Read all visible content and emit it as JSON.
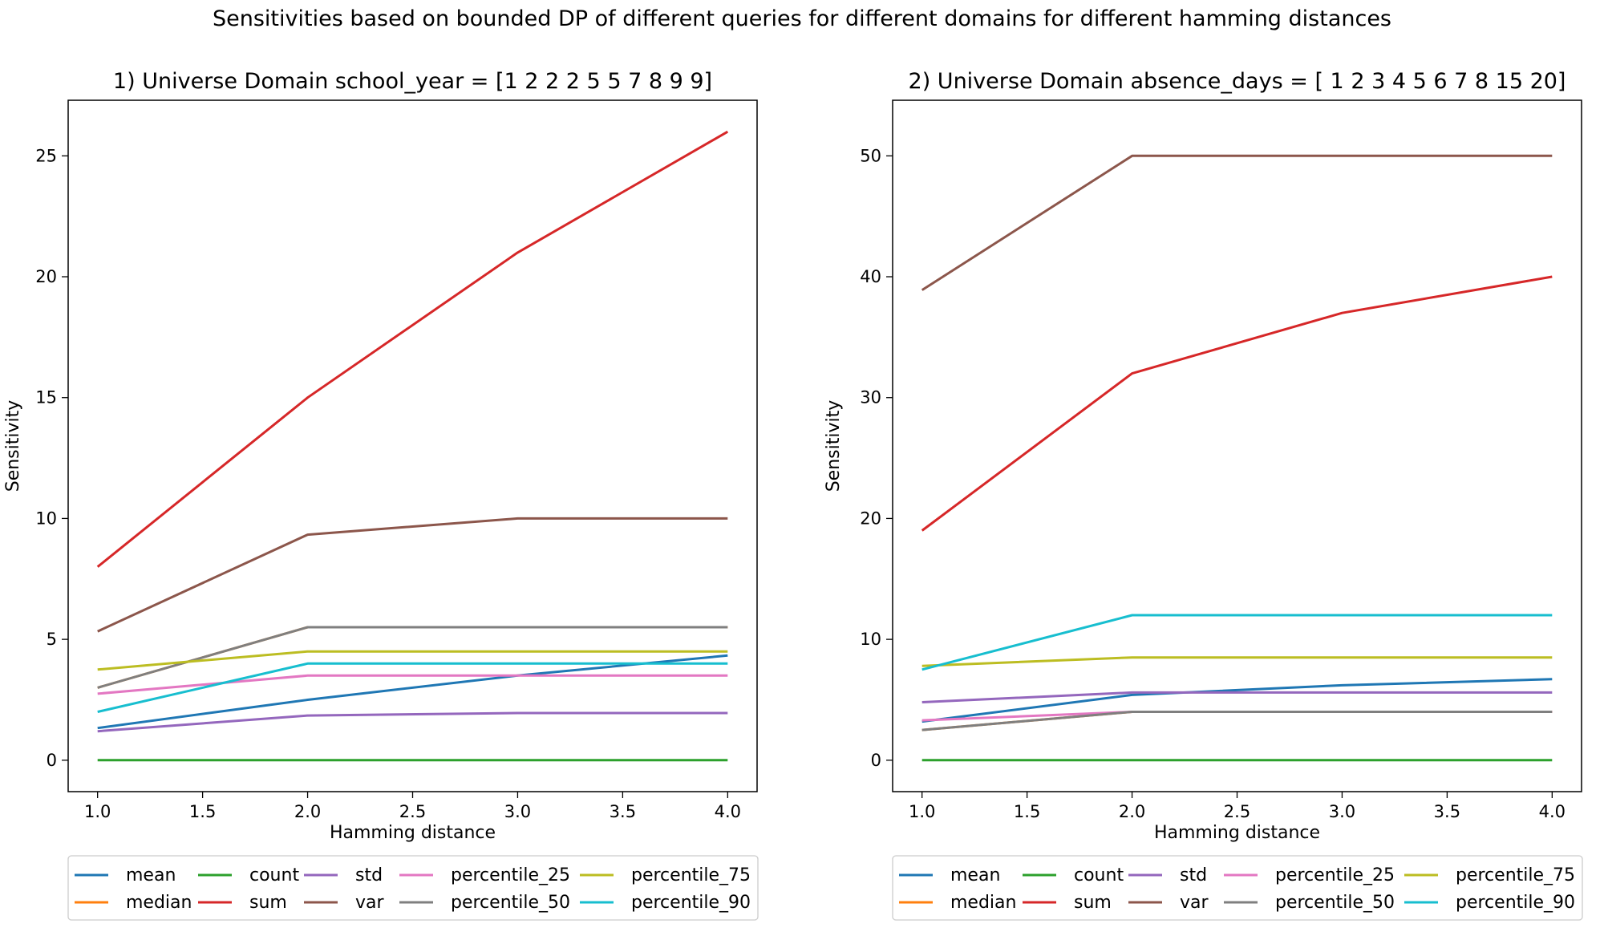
{
  "figure_title": "Sensitivities based on bounded DP of different queries for different domains for different hamming distances",
  "colors": {
    "mean": "#1f77b4",
    "median": "#ff7f0e",
    "count": "#2ca02c",
    "sum": "#d62728",
    "std": "#9467bd",
    "var": "#8c564b",
    "percentile_25": "#e377c2",
    "percentile_50": "#7f7f7f",
    "percentile_75": "#bcbd22",
    "percentile_90": "#17becf"
  },
  "chart_data": [
    {
      "type": "line",
      "title": "1) Universe Domain school_year = [1 2 2 2 5 5 7 8 9 9]",
      "xlabel": "Hamming distance",
      "ylabel": "Sensitivity",
      "x": [
        1.0,
        2.0,
        3.0,
        4.0
      ],
      "xlim": [
        0.86,
        4.14
      ],
      "ylim": [
        -1.3,
        27.3
      ],
      "xticks": [
        1.0,
        1.5,
        2.0,
        2.5,
        3.0,
        3.5,
        4.0
      ],
      "xtick_labels": [
        "1.0",
        "1.5",
        "2.0",
        "2.5",
        "3.0",
        "3.5",
        "4.0"
      ],
      "yticks": [
        0,
        5,
        10,
        15,
        20,
        25
      ],
      "ytick_labels": [
        "0",
        "5",
        "10",
        "15",
        "20",
        "25"
      ],
      "grid": false,
      "legend_placement": "below",
      "series": [
        {
          "name": "mean",
          "values": [
            1.33,
            2.5,
            3.5,
            4.33
          ]
        },
        {
          "name": "median",
          "values": [
            3.0,
            5.5,
            5.5,
            5.5
          ]
        },
        {
          "name": "count",
          "values": [
            0,
            0,
            0,
            0
          ]
        },
        {
          "name": "sum",
          "values": [
            8,
            15,
            21,
            26
          ]
        },
        {
          "name": "std",
          "values": [
            1.2,
            1.85,
            1.95,
            1.95
          ]
        },
        {
          "name": "var",
          "values": [
            5.33,
            9.33,
            10.0,
            10.0
          ]
        },
        {
          "name": "percentile_25",
          "values": [
            2.75,
            3.5,
            3.5,
            3.5
          ]
        },
        {
          "name": "percentile_50",
          "values": [
            3.0,
            5.5,
            5.5,
            5.5
          ]
        },
        {
          "name": "percentile_75",
          "values": [
            3.75,
            4.5,
            4.5,
            4.5
          ]
        },
        {
          "name": "percentile_90",
          "values": [
            2.0,
            4.0,
            4.0,
            4.0
          ]
        }
      ]
    },
    {
      "type": "line",
      "title": "2) Universe Domain absence_days = [ 1  2  3  4  5  6  7  8 15 20]",
      "xlabel": "Hamming distance",
      "ylabel": "Sensitivity",
      "x": [
        1.0,
        2.0,
        3.0,
        4.0
      ],
      "xlim": [
        0.86,
        4.14
      ],
      "ylim": [
        -2.6,
        54.6
      ],
      "xticks": [
        1.0,
        1.5,
        2.0,
        2.5,
        3.0,
        3.5,
        4.0
      ],
      "xtick_labels": [
        "1.0",
        "1.5",
        "2.0",
        "2.5",
        "3.0",
        "3.5",
        "4.0"
      ],
      "yticks": [
        0,
        10,
        20,
        30,
        40,
        50
      ],
      "ytick_labels": [
        "0",
        "10",
        "20",
        "30",
        "40",
        "50"
      ],
      "grid": false,
      "legend_placement": "below",
      "series": [
        {
          "name": "mean",
          "values": [
            3.2,
            5.4,
            6.2,
            6.7
          ]
        },
        {
          "name": "median",
          "values": [
            2.5,
            4.0,
            4.0,
            4.0
          ]
        },
        {
          "name": "count",
          "values": [
            0,
            0,
            0,
            0
          ]
        },
        {
          "name": "sum",
          "values": [
            19,
            32,
            37,
            40
          ]
        },
        {
          "name": "std",
          "values": [
            4.8,
            5.6,
            5.6,
            5.6
          ]
        },
        {
          "name": "var",
          "values": [
            38.9,
            50.0,
            50.0,
            50.0
          ]
        },
        {
          "name": "percentile_25",
          "values": [
            3.3,
            4.0,
            4.0,
            4.0
          ]
        },
        {
          "name": "percentile_50",
          "values": [
            2.5,
            4.0,
            4.0,
            4.0
          ]
        },
        {
          "name": "percentile_75",
          "values": [
            7.8,
            8.5,
            8.5,
            8.5
          ]
        },
        {
          "name": "percentile_90",
          "values": [
            7.5,
            12.0,
            12.0,
            12.0
          ]
        }
      ]
    }
  ],
  "legend": {
    "columns": [
      [
        "mean",
        "median"
      ],
      [
        "count",
        "sum"
      ],
      [
        "std",
        "var"
      ],
      [
        "percentile_25",
        "percentile_50"
      ],
      [
        "percentile_75",
        "percentile_90"
      ]
    ]
  }
}
